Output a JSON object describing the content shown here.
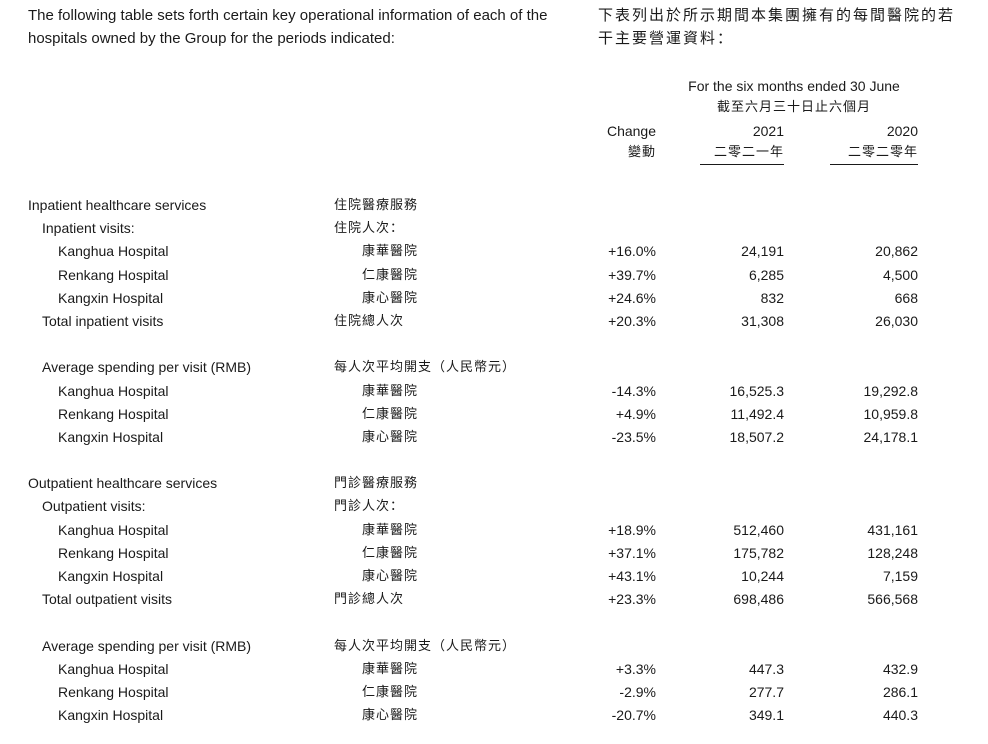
{
  "intro": {
    "en": "The following table sets forth certain key operational information of each of the hospitals owned by the Group for the periods indicated:",
    "zh": "下表列出於所示期間本集團擁有的每間醫院的若干主要營運資料："
  },
  "header": {
    "period_en": "For the six months ended 30 June",
    "period_zh": "截至六月三十日止六個月",
    "change_en": "Change",
    "change_zh": "變動",
    "year_2021": "2021",
    "year_2021_zh": "二零二一年",
    "year_2020": "2020",
    "year_2020_zh": "二零二零年"
  },
  "rows": [
    {
      "level": 0,
      "en": "Inpatient healthcare services",
      "zh": "住院醫療服務",
      "change": "",
      "v2021": "",
      "v2020": ""
    },
    {
      "level": 1,
      "en": "Inpatient visits:",
      "zh": "住院人次：",
      "change": "",
      "v2021": "",
      "v2020": ""
    },
    {
      "level": 2,
      "en": "Kanghua Hospital",
      "zh": "康華醫院",
      "change": "+16.0%",
      "v2021": "24,191",
      "v2020": "20,862"
    },
    {
      "level": 2,
      "en": "Renkang Hospital",
      "zh": "仁康醫院",
      "change": "+39.7%",
      "v2021": "6,285",
      "v2020": "4,500"
    },
    {
      "level": 2,
      "en": "Kangxin Hospital",
      "zh": "康心醫院",
      "change": "+24.6%",
      "v2021": "832",
      "v2020": "668"
    },
    {
      "level": 1,
      "en": "Total inpatient visits",
      "zh": "住院總人次",
      "change": "+20.3%",
      "v2021": "31,308",
      "v2020": "26,030"
    },
    {
      "level": -1
    },
    {
      "level": 1,
      "en": "Average spending per visit (RMB)",
      "zh": "每人次平均開支（人民幣元）",
      "change": "",
      "v2021": "",
      "v2020": ""
    },
    {
      "level": 2,
      "en": "Kanghua Hospital",
      "zh": "康華醫院",
      "change": "-14.3%",
      "v2021": "16,525.3",
      "v2020": "19,292.8"
    },
    {
      "level": 2,
      "en": "Renkang Hospital",
      "zh": "仁康醫院",
      "change": "+4.9%",
      "v2021": "11,492.4",
      "v2020": "10,959.8"
    },
    {
      "level": 2,
      "en": "Kangxin Hospital",
      "zh": "康心醫院",
      "change": "-23.5%",
      "v2021": "18,507.2",
      "v2020": "24,178.1"
    },
    {
      "level": -1
    },
    {
      "level": 0,
      "en": "Outpatient healthcare services",
      "zh": "門診醫療服務",
      "change": "",
      "v2021": "",
      "v2020": ""
    },
    {
      "level": 1,
      "en": "Outpatient visits:",
      "zh": "門診人次：",
      "change": "",
      "v2021": "",
      "v2020": ""
    },
    {
      "level": 2,
      "en": "Kanghua Hospital",
      "zh": "康華醫院",
      "change": "+18.9%",
      "v2021": "512,460",
      "v2020": "431,161"
    },
    {
      "level": 2,
      "en": "Renkang Hospital",
      "zh": "仁康醫院",
      "change": "+37.1%",
      "v2021": "175,782",
      "v2020": "128,248"
    },
    {
      "level": 2,
      "en": "Kangxin Hospital",
      "zh": "康心醫院",
      "change": "+43.1%",
      "v2021": "10,244",
      "v2020": "7,159"
    },
    {
      "level": 1,
      "en": "Total outpatient visits",
      "zh": "門診總人次",
      "change": "+23.3%",
      "v2021": "698,486",
      "v2020": "566,568"
    },
    {
      "level": -1
    },
    {
      "level": 1,
      "en": "Average spending per visit (RMB)",
      "zh": "每人次平均開支（人民幣元）",
      "change": "",
      "v2021": "",
      "v2020": ""
    },
    {
      "level": 2,
      "en": "Kanghua Hospital",
      "zh": "康華醫院",
      "change": "+3.3%",
      "v2021": "447.3",
      "v2020": "432.9"
    },
    {
      "level": 2,
      "en": "Renkang Hospital",
      "zh": "仁康醫院",
      "change": "-2.9%",
      "v2021": "277.7",
      "v2020": "286.1"
    },
    {
      "level": 2,
      "en": "Kangxin Hospital",
      "zh": "康心醫院",
      "change": "-20.7%",
      "v2021": "349.1",
      "v2020": "440.3"
    }
  ]
}
